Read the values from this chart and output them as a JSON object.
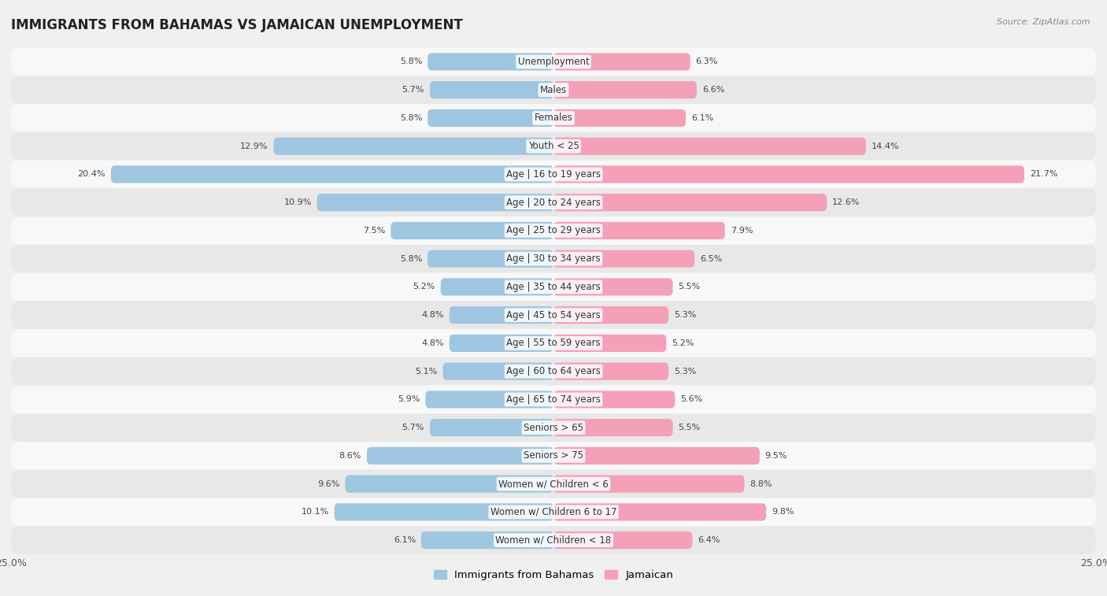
{
  "title": "IMMIGRANTS FROM BAHAMAS VS JAMAICAN UNEMPLOYMENT",
  "source": "Source: ZipAtlas.com",
  "categories": [
    "Unemployment",
    "Males",
    "Females",
    "Youth < 25",
    "Age | 16 to 19 years",
    "Age | 20 to 24 years",
    "Age | 25 to 29 years",
    "Age | 30 to 34 years",
    "Age | 35 to 44 years",
    "Age | 45 to 54 years",
    "Age | 55 to 59 years",
    "Age | 60 to 64 years",
    "Age | 65 to 74 years",
    "Seniors > 65",
    "Seniors > 75",
    "Women w/ Children < 6",
    "Women w/ Children 6 to 17",
    "Women w/ Children < 18"
  ],
  "bahamas_values": [
    5.8,
    5.7,
    5.8,
    12.9,
    20.4,
    10.9,
    7.5,
    5.8,
    5.2,
    4.8,
    4.8,
    5.1,
    5.9,
    5.7,
    8.6,
    9.6,
    10.1,
    6.1
  ],
  "jamaican_values": [
    6.3,
    6.6,
    6.1,
    14.4,
    21.7,
    12.6,
    7.9,
    6.5,
    5.5,
    5.3,
    5.2,
    5.3,
    5.6,
    5.5,
    9.5,
    8.8,
    9.8,
    6.4
  ],
  "bahamas_color": "#9ec6e0",
  "jamaican_color": "#f4a0b8",
  "bahamas_color_highlight": "#5b9fd4",
  "jamaican_color_highlight": "#e8607a",
  "xlim": 25.0,
  "background_color": "#f0f0f0",
  "row_color_odd": "#f8f8f8",
  "row_color_even": "#e8e8e8",
  "title_fontsize": 12,
  "label_fontsize": 8.5,
  "value_fontsize": 8,
  "legend_fontsize": 9.5,
  "axis_label_fontsize": 9
}
